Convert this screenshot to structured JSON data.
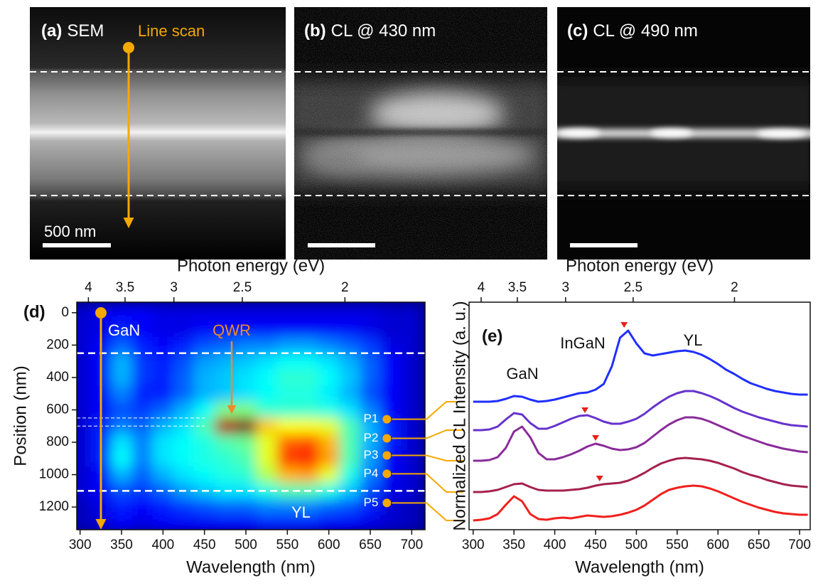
{
  "panels": [
    {
      "label": "(a)",
      "title": "SEM"
    },
    {
      "label": "(b)",
      "title": "CL @ 430 nm"
    },
    {
      "label": "(c)",
      "title": "CL @ 490 nm"
    }
  ],
  "line_scan": "Line scan",
  "scale_bar": "500 nm",
  "chart_data": [
    {
      "type": "heatmap",
      "label": "(d)",
      "x_label": "Wavelength (nm)",
      "y_label": "Position (nm)",
      "x2_label": "Photon energy (eV)",
      "colormap": "jet",
      "x": [
        300,
        325,
        350,
        375,
        400,
        425,
        450,
        475,
        500,
        525,
        550,
        575,
        600,
        625,
        650,
        675,
        700
      ],
      "y": [
        0,
        100,
        200,
        300,
        400,
        500,
        600,
        700,
        800,
        900,
        1000,
        1100,
        1200,
        1300
      ],
      "z": [
        [
          0.08,
          0.1,
          0.12,
          0.12,
          0.1,
          0.1,
          0.1,
          0.1,
          0.1,
          0.1,
          0.1,
          0.1,
          0.1,
          0.1,
          0.1,
          0.08,
          0.08
        ],
        [
          0.08,
          0.1,
          0.15,
          0.12,
          0.1,
          0.1,
          0.12,
          0.12,
          0.12,
          0.12,
          0.12,
          0.12,
          0.12,
          0.12,
          0.1,
          0.08,
          0.08
        ],
        [
          0.08,
          0.12,
          0.22,
          0.15,
          0.12,
          0.15,
          0.2,
          0.22,
          0.25,
          0.25,
          0.28,
          0.28,
          0.25,
          0.22,
          0.18,
          0.1,
          0.08
        ],
        [
          0.08,
          0.12,
          0.3,
          0.18,
          0.15,
          0.2,
          0.28,
          0.3,
          0.32,
          0.35,
          0.38,
          0.38,
          0.35,
          0.3,
          0.22,
          0.12,
          0.08
        ],
        [
          0.08,
          0.12,
          0.3,
          0.18,
          0.15,
          0.22,
          0.3,
          0.32,
          0.35,
          0.38,
          0.42,
          0.42,
          0.38,
          0.32,
          0.22,
          0.12,
          0.08
        ],
        [
          0.08,
          0.12,
          0.25,
          0.15,
          0.15,
          0.22,
          0.3,
          0.32,
          0.35,
          0.38,
          0.4,
          0.4,
          0.36,
          0.3,
          0.2,
          0.12,
          0.08
        ],
        [
          0.08,
          0.12,
          0.2,
          0.18,
          0.22,
          0.3,
          0.38,
          0.5,
          0.5,
          0.42,
          0.42,
          0.42,
          0.4,
          0.35,
          0.25,
          0.12,
          0.08
        ],
        [
          0.08,
          0.15,
          0.25,
          0.22,
          0.3,
          0.35,
          0.45,
          0.95,
          1.0,
          0.68,
          0.62,
          0.62,
          0.6,
          0.45,
          0.3,
          0.15,
          0.08
        ],
        [
          0.08,
          0.15,
          0.35,
          0.25,
          0.35,
          0.38,
          0.4,
          0.45,
          0.48,
          0.6,
          0.78,
          0.8,
          0.7,
          0.45,
          0.3,
          0.15,
          0.08
        ],
        [
          0.08,
          0.15,
          0.38,
          0.25,
          0.35,
          0.38,
          0.4,
          0.42,
          0.45,
          0.6,
          0.82,
          0.85,
          0.72,
          0.45,
          0.28,
          0.12,
          0.08
        ],
        [
          0.08,
          0.12,
          0.3,
          0.22,
          0.3,
          0.35,
          0.38,
          0.4,
          0.42,
          0.55,
          0.7,
          0.72,
          0.6,
          0.4,
          0.25,
          0.12,
          0.08
        ],
        [
          0.08,
          0.12,
          0.2,
          0.18,
          0.22,
          0.28,
          0.32,
          0.35,
          0.35,
          0.4,
          0.45,
          0.45,
          0.4,
          0.32,
          0.2,
          0.1,
          0.08
        ],
        [
          0.06,
          0.1,
          0.15,
          0.12,
          0.15,
          0.18,
          0.2,
          0.22,
          0.22,
          0.25,
          0.25,
          0.25,
          0.22,
          0.2,
          0.15,
          0.08,
          0.06
        ],
        [
          0.06,
          0.08,
          0.12,
          0.1,
          0.12,
          0.12,
          0.12,
          0.12,
          0.12,
          0.15,
          0.15,
          0.15,
          0.12,
          0.12,
          0.1,
          0.08,
          0.06
        ]
      ],
      "xlim": [
        296,
        716
      ],
      "xticks": [
        300,
        350,
        400,
        450,
        500,
        550,
        600,
        650,
        700
      ],
      "ylim": [
        -65,
        1340
      ],
      "y_inverted": true,
      "yticks": [
        0,
        200,
        400,
        600,
        800,
        1000,
        1200
      ],
      "x2lim": [
        4.19,
        1.73
      ],
      "x2_scale": "reciprocal",
      "x2ticks": [
        4,
        3.5,
        3,
        2.5,
        2
      ],
      "hlines": [
        250,
        1100
      ],
      "band": [
        650,
        700
      ],
      "annotations": [
        "GaN",
        "QWR",
        "YL"
      ],
      "points": [
        {
          "label": "P1",
          "x": 670,
          "y": 658
        },
        {
          "label": "P2",
          "x": 670,
          "y": 776
        },
        {
          "label": "P3",
          "x": 670,
          "y": 881
        },
        {
          "label": "P4",
          "x": 670,
          "y": 995
        },
        {
          "label": "P5",
          "x": 670,
          "y": 1175
        }
      ]
    },
    {
      "type": "line",
      "label": "(e)",
      "x_label": "Wavelength (nm)",
      "y_label": "Normalized CL Intensity (a. u.)",
      "x2_label": "Photon energy (eV)",
      "x": [
        300,
        310,
        320,
        330,
        340,
        350,
        360,
        370,
        380,
        390,
        400,
        410,
        420,
        430,
        440,
        450,
        460,
        470,
        480,
        490,
        500,
        510,
        520,
        530,
        540,
        550,
        560,
        570,
        580,
        590,
        600,
        610,
        620,
        630,
        640,
        650,
        660,
        670,
        680,
        690,
        700,
        710
      ],
      "series": [
        {
          "color": "#1f2fff",
          "values": [
            1.8,
            1.8,
            1.8,
            1.81,
            1.84,
            1.88,
            1.87,
            1.83,
            1.8,
            1.81,
            1.83,
            1.86,
            1.89,
            1.92,
            1.93,
            1.97,
            2.05,
            2.3,
            2.7,
            2.8,
            2.62,
            2.48,
            2.45,
            2.47,
            2.49,
            2.51,
            2.52,
            2.5,
            2.46,
            2.4,
            2.33,
            2.25,
            2.19,
            2.12,
            2.06,
            2.02,
            1.98,
            1.95,
            1.93,
            1.91,
            1.9,
            1.9
          ]
        },
        {
          "color": "#6633cc",
          "values": [
            1.4,
            1.4,
            1.41,
            1.45,
            1.55,
            1.64,
            1.62,
            1.5,
            1.42,
            1.42,
            1.46,
            1.51,
            1.56,
            1.6,
            1.61,
            1.57,
            1.52,
            1.49,
            1.49,
            1.52,
            1.56,
            1.63,
            1.72,
            1.8,
            1.87,
            1.92,
            1.95,
            1.95,
            1.92,
            1.88,
            1.83,
            1.77,
            1.71,
            1.66,
            1.62,
            1.58,
            1.55,
            1.52,
            1.49,
            1.47,
            1.46,
            1.45
          ]
        },
        {
          "color": "#8a2b9a",
          "values": [
            0.97,
            0.97,
            0.98,
            1.02,
            1.15,
            1.38,
            1.45,
            1.3,
            1.08,
            0.99,
            0.99,
            1.02,
            1.06,
            1.11,
            1.17,
            1.21,
            1.18,
            1.14,
            1.12,
            1.13,
            1.16,
            1.22,
            1.31,
            1.4,
            1.48,
            1.54,
            1.58,
            1.58,
            1.56,
            1.52,
            1.47,
            1.42,
            1.37,
            1.32,
            1.28,
            1.24,
            1.2,
            1.17,
            1.14,
            1.12,
            1.1,
            1.09
          ]
        },
        {
          "color": "#a5204f",
          "values": [
            0.53,
            0.53,
            0.54,
            0.56,
            0.6,
            0.64,
            0.65,
            0.6,
            0.56,
            0.55,
            0.55,
            0.55,
            0.56,
            0.57,
            0.59,
            0.62,
            0.64,
            0.65,
            0.66,
            0.69,
            0.74,
            0.8,
            0.87,
            0.93,
            0.97,
            1.0,
            1.01,
            1.0,
            0.99,
            0.97,
            0.94,
            0.9,
            0.86,
            0.81,
            0.77,
            0.74,
            0.7,
            0.67,
            0.64,
            0.62,
            0.61,
            0.6
          ]
        },
        {
          "color": "#f0201d",
          "values": [
            0.13,
            0.14,
            0.16,
            0.22,
            0.35,
            0.47,
            0.4,
            0.22,
            0.15,
            0.14,
            0.16,
            0.17,
            0.16,
            0.18,
            0.2,
            0.19,
            0.18,
            0.19,
            0.21,
            0.24,
            0.28,
            0.34,
            0.42,
            0.5,
            0.56,
            0.59,
            0.61,
            0.62,
            0.61,
            0.58,
            0.54,
            0.49,
            0.44,
            0.39,
            0.35,
            0.31,
            0.28,
            0.25,
            0.23,
            0.22,
            0.21,
            0.21
          ]
        }
      ],
      "xlim": [
        295,
        713
      ],
      "xticks": [
        300,
        350,
        400,
        450,
        500,
        550,
        600,
        650,
        700
      ],
      "ylim": [
        0,
        3.2
      ],
      "x2lim": [
        4.2,
        1.74
      ],
      "x2_scale": "reciprocal",
      "x2ticks": [
        4,
        3.5,
        3,
        2.5,
        2
      ],
      "annotations": [
        "GaN",
        "InGaN",
        "YL"
      ],
      "markers": [
        {
          "x": 485,
          "y": 2.88
        },
        {
          "x": 437,
          "y": 1.68
        },
        {
          "x": 450,
          "y": 1.29
        },
        {
          "x": 455,
          "y": 0.72
        }
      ],
      "marker_color": "#e8201a"
    }
  ]
}
